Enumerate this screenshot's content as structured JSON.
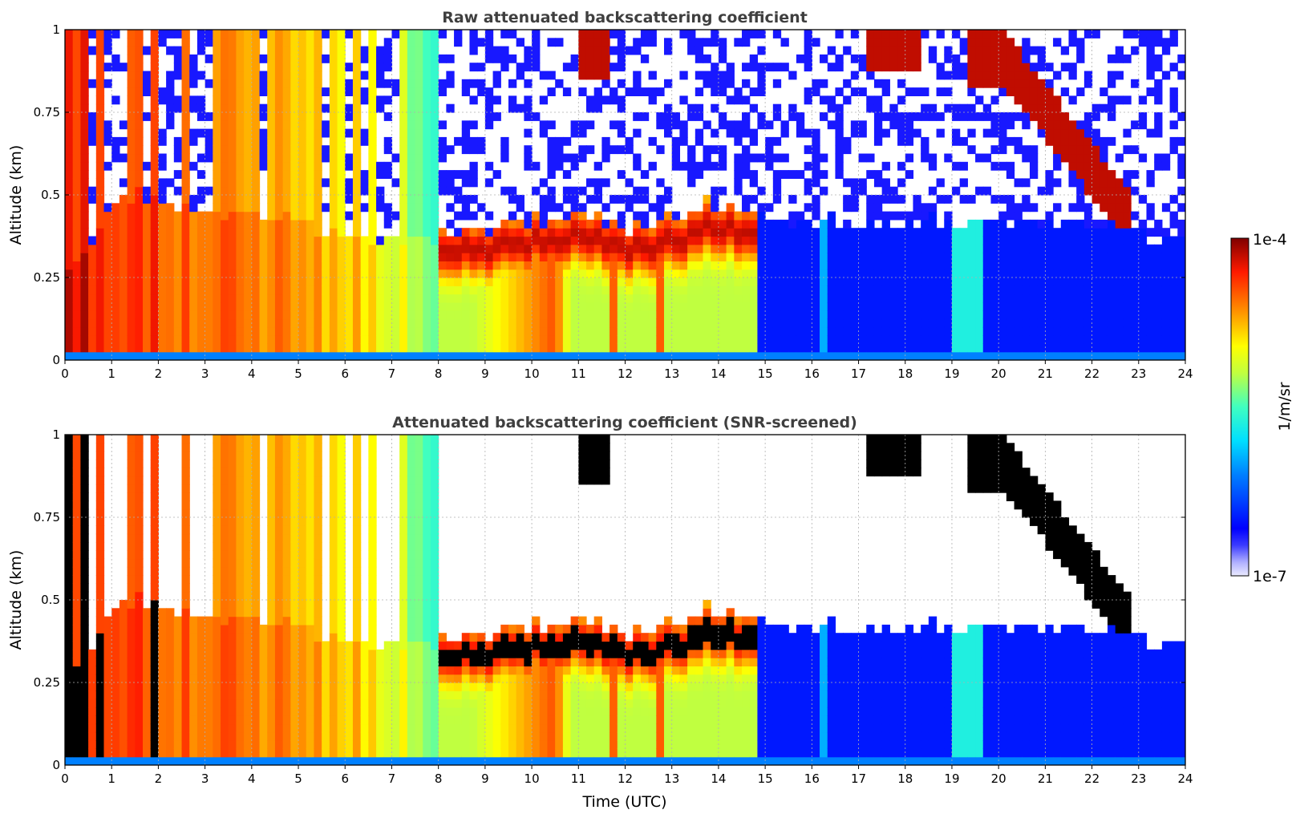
{
  "figure": {
    "xlabel": "Time (UTC)",
    "colorbar": {
      "label": "1/m/sr",
      "max_label": "1e-4",
      "min_label": "1e-7",
      "colormap": "jet",
      "scale": "log",
      "range": [
        1e-07,
        0.0001
      ],
      "low_color": "#e6e6fa",
      "high_color": "#800000"
    }
  },
  "chart_data": [
    {
      "type": "heatmap",
      "title": "Raw attenuated backscattering coefficient",
      "xlabel": "",
      "ylabel": "Altitude (km)",
      "xlim": [
        0,
        24
      ],
      "ylim": [
        0,
        1
      ],
      "x_ticks": [
        "0",
        "1",
        "2",
        "3",
        "4",
        "5",
        "6",
        "7",
        "8",
        "9",
        "10",
        "11",
        "12",
        "13",
        "14",
        "15",
        "16",
        "17",
        "18",
        "19",
        "20",
        "21",
        "22",
        "23",
        "24"
      ],
      "y_ticks": [
        "0",
        "0.25",
        "0.5",
        "0.75",
        "1"
      ],
      "grid": true,
      "noise_above_layer": "sparse speckle, blue",
      "screened": false,
      "mixed_layer_top_km": [
        [
          0,
          0.27
        ],
        [
          0.5,
          0.35
        ],
        [
          1,
          0.45
        ],
        [
          1.5,
          0.5
        ],
        [
          2,
          0.48
        ],
        [
          3,
          0.45
        ],
        [
          4,
          0.44
        ],
        [
          5,
          0.42
        ],
        [
          6,
          0.38
        ],
        [
          7,
          0.36
        ],
        [
          8,
          0.37
        ],
        [
          9,
          0.4
        ],
        [
          10,
          0.42
        ],
        [
          11,
          0.45
        ],
        [
          12,
          0.4
        ],
        [
          13,
          0.42
        ],
        [
          14,
          0.48
        ],
        [
          15,
          0.42
        ],
        [
          16,
          0.42
        ],
        [
          17,
          0.42
        ],
        [
          18,
          0.42
        ],
        [
          19,
          0.42
        ],
        [
          20,
          0.42
        ],
        [
          21,
          0.42
        ],
        [
          22,
          0.42
        ],
        [
          23,
          0.38
        ],
        [
          24,
          0.35
        ]
      ],
      "intensity_profile": [
        [
          0,
          "very high"
        ],
        [
          2,
          "high"
        ],
        [
          5,
          "medium-high"
        ],
        [
          7,
          "medium"
        ],
        [
          8,
          "medium-low"
        ],
        [
          10.5,
          "high"
        ],
        [
          11.2,
          "low"
        ],
        [
          13.8,
          "very low"
        ],
        [
          24,
          "very low"
        ]
      ]
    },
    {
      "type": "heatmap",
      "title": "Attenuated backscattering coefficient (SNR-screened)",
      "xlabel": "Time (UTC)",
      "ylabel": "Altitude (km)",
      "xlim": [
        0,
        24
      ],
      "ylim": [
        0,
        1
      ],
      "x_ticks": [
        "0",
        "1",
        "2",
        "3",
        "4",
        "5",
        "6",
        "7",
        "8",
        "9",
        "10",
        "11",
        "12",
        "13",
        "14",
        "15",
        "16",
        "17",
        "18",
        "19",
        "20",
        "21",
        "22",
        "23",
        "24"
      ],
      "y_ticks": [
        "0",
        "0.25",
        "0.5",
        "0.75",
        "1"
      ],
      "grid": true,
      "screened": true,
      "masked_color": "#ffffff",
      "saturated_color": "#000000"
    }
  ]
}
